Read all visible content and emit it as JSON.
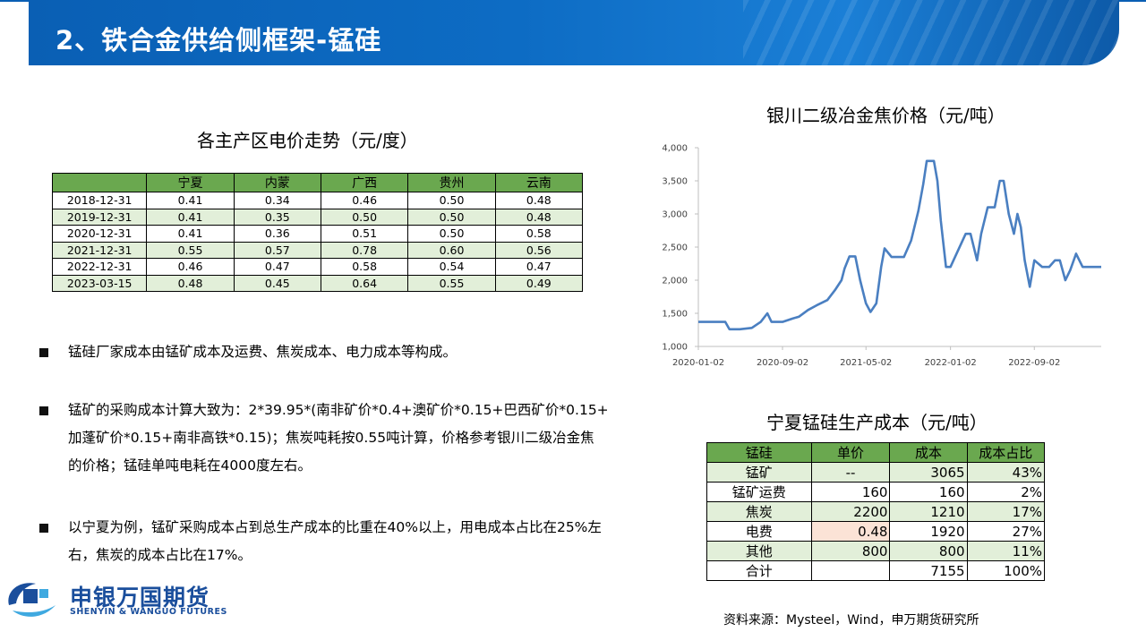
{
  "header": {
    "title": "2、铁合金供给侧框架-锰硅"
  },
  "electricity": {
    "title": "各主产区电价走势（元/度）",
    "columns": [
      "宁夏",
      "内蒙",
      "广西",
      "贵州",
      "云南"
    ],
    "rows": [
      {
        "date": "2018-12-31",
        "values": [
          "0.41",
          "0.34",
          "0.46",
          "0.50",
          "0.48"
        ]
      },
      {
        "date": "2019-12-31",
        "values": [
          "0.41",
          "0.35",
          "0.50",
          "0.50",
          "0.48"
        ]
      },
      {
        "date": "2020-12-31",
        "values": [
          "0.41",
          "0.36",
          "0.51",
          "0.50",
          "0.58"
        ]
      },
      {
        "date": "2021-12-31",
        "values": [
          "0.55",
          "0.57",
          "0.78",
          "0.60",
          "0.56"
        ]
      },
      {
        "date": "2022-12-31",
        "values": [
          "0.46",
          "0.47",
          "0.58",
          "0.54",
          "0.47"
        ]
      },
      {
        "date": "2023-03-15",
        "values": [
          "0.48",
          "0.45",
          "0.64",
          "0.55",
          "0.49"
        ]
      }
    ]
  },
  "bullets": [
    {
      "lines": [
        "锰硅厂家成本由锰矿成本及运费、焦炭成本、电力成本等构成。"
      ]
    },
    {
      "lines": [
        "锰矿的采购成本计算大致为：2*39.95*(南非矿价*0.4+澳矿价*0.15+巴西矿价*0.15+",
        "加蓬矿价*0.15+南非高铁*0.15)；焦炭吨耗按0.55吨计算，价格参考银川二级冶金焦",
        "的价格；锰硅单吨电耗在4000度左右。"
      ]
    },
    {
      "lines": [
        "以宁夏为例，锰矿采购成本占到总生产成本的比重在40%以上，用电成本占比在25%左",
        "右，焦炭的成本占比在17%。"
      ]
    }
  ],
  "chart_data": {
    "type": "line",
    "title": "银川二级冶金焦价格（元/吨）",
    "xlabel": "",
    "ylabel": "",
    "x_ticks": [
      "2020-01-02",
      "2020-09-02",
      "2021-05-02",
      "2022-01-02",
      "2022-09-02"
    ],
    "y_ticks": [
      "1,000",
      "1,500",
      "2,000",
      "2,500",
      "3,000",
      "3,500",
      "4,000"
    ],
    "ylim": [
      1000,
      4000
    ],
    "xlim": [
      "2020-01-02",
      "2023-03-15"
    ],
    "line_color": "#4a7fc1",
    "grid": false,
    "series": [
      {
        "x": [
          "2020-01-02",
          "2020-03-20",
          "2020-04-01",
          "2020-05-01",
          "2020-06-05",
          "2020-07-01",
          "2020-07-20",
          "2020-08-01",
          "2020-09-02",
          "2020-10-01",
          "2020-10-20",
          "2020-11-15",
          "2020-12-10",
          "2021-01-10",
          "2021-02-01",
          "2021-02-20",
          "2021-03-01",
          "2021-03-15",
          "2021-04-01",
          "2021-04-15",
          "2021-05-02",
          "2021-05-15",
          "2021-06-01",
          "2021-06-15",
          "2021-06-25",
          "2021-07-15",
          "2021-08-05",
          "2021-08-20",
          "2021-09-10",
          "2021-10-01",
          "2021-10-15",
          "2021-10-25",
          "2021-11-01",
          "2021-11-15",
          "2021-11-25",
          "2021-12-05",
          "2021-12-20",
          "2022-01-02",
          "2022-02-15",
          "2022-03-01",
          "2022-03-20",
          "2022-04-01",
          "2022-04-20",
          "2022-05-10",
          "2022-05-25",
          "2022-06-05",
          "2022-06-20",
          "2022-07-05",
          "2022-07-15",
          "2022-07-25",
          "2022-08-05",
          "2022-08-20",
          "2022-09-02",
          "2022-09-25",
          "2022-10-15",
          "2022-11-01",
          "2022-11-15",
          "2022-12-01",
          "2022-12-15",
          "2023-01-01",
          "2023-01-20",
          "2023-02-10",
          "2023-03-15"
        ],
        "y": [
          1370,
          1370,
          1260,
          1260,
          1280,
          1370,
          1500,
          1370,
          1370,
          1420,
          1450,
          1550,
          1620,
          1700,
          1850,
          2000,
          2180,
          2360,
          2360,
          2000,
          1650,
          1520,
          1650,
          2200,
          2480,
          2350,
          2350,
          2350,
          2600,
          3050,
          3450,
          3800,
          3800,
          3800,
          3500,
          2900,
          2200,
          2200,
          2700,
          2700,
          2300,
          2700,
          3100,
          3100,
          3500,
          3500,
          3000,
          2700,
          3000,
          2800,
          2300,
          1900,
          2300,
          2200,
          2200,
          2300,
          2300,
          2000,
          2150,
          2400,
          2200,
          2200,
          2200
        ]
      }
    ]
  },
  "cost_table": {
    "title": "宁夏锰硅生产成本（元/吨）",
    "headers": [
      "锰硅",
      "单价",
      "成本",
      "成本占比"
    ],
    "rows": [
      {
        "name": "锰矿",
        "price": "--",
        "cost": "3065",
        "share": "43%"
      },
      {
        "name": "锰矿运费",
        "price": "160",
        "cost": "160",
        "share": "2%"
      },
      {
        "name": "焦炭",
        "price": "2200",
        "cost": "1210",
        "share": "17%"
      },
      {
        "name": "电费",
        "price": "0.48",
        "cost": "1920",
        "share": "27%"
      },
      {
        "name": "其他",
        "price": "800",
        "cost": "800",
        "share": "11%"
      },
      {
        "name": "合计",
        "price": "",
        "cost": "7155",
        "share": "100%"
      }
    ]
  },
  "source": "资料来源：Mysteel，Wind，申万期货研究所",
  "logo": {
    "cn": "申银万国期货",
    "en": "SHENYIN & WANGUO FUTURES"
  }
}
